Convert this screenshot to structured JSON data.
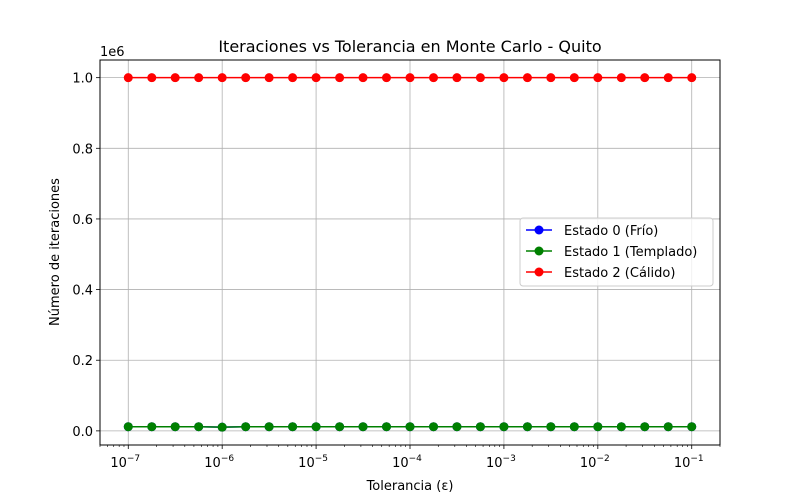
{
  "chart_data": {
    "type": "line",
    "title": "Iteraciones vs Tolerancia en Monte Carlo - Quito",
    "xlabel": "Tolerancia (ε)",
    "ylabel": "Número de iteraciones",
    "xscale": "log",
    "xlim": [
      5e-08,
      0.2
    ],
    "ylim": [
      -0.04,
      1.05
    ],
    "y_multiplier_label": "1e6",
    "grid": true,
    "legend_position": "center-right",
    "x_ticks": [
      {
        "value": 1e-07,
        "base": "10",
        "exp": "−7"
      },
      {
        "value": 1e-06,
        "base": "10",
        "exp": "−6"
      },
      {
        "value": 1e-05,
        "base": "10",
        "exp": "−5"
      },
      {
        "value": 0.0001,
        "base": "10",
        "exp": "−4"
      },
      {
        "value": 0.001,
        "base": "10",
        "exp": "−3"
      },
      {
        "value": 0.01,
        "base": "10",
        "exp": "−2"
      },
      {
        "value": 0.1,
        "base": "10",
        "exp": "−1"
      }
    ],
    "y_ticks": [
      {
        "value": 0.0,
        "label": "0.0"
      },
      {
        "value": 0.2,
        "label": "0.2"
      },
      {
        "value": 0.4,
        "label": "0.4"
      },
      {
        "value": 0.6,
        "label": "0.6"
      },
      {
        "value": 0.8,
        "label": "0.8"
      },
      {
        "value": 1.0,
        "label": "1.0"
      }
    ],
    "x": [
      1e-07,
      1.78e-07,
      3.16e-07,
      5.62e-07,
      1e-06,
      1.78e-06,
      3.16e-06,
      5.62e-06,
      1e-05,
      1.78e-05,
      3.16e-05,
      5.62e-05,
      0.0001,
      0.000178,
      0.000316,
      0.000562,
      0.001,
      0.00178,
      0.00316,
      0.00562,
      0.01,
      0.0178,
      0.0316,
      0.0562,
      0.1
    ],
    "series": [
      {
        "name": "Estado 0 (Frío)",
        "color": "#0000ff",
        "values": [
          0.0117,
          0.0117,
          0.0117,
          0.0117,
          0.0105,
          0.0117,
          0.0117,
          0.0117,
          0.0117,
          0.0117,
          0.0117,
          0.0117,
          0.0117,
          0.0117,
          0.0117,
          0.0117,
          0.0117,
          0.0117,
          0.0117,
          0.0117,
          0.0117,
          0.0117,
          0.0117,
          0.0117,
          0.0117
        ]
      },
      {
        "name": "Estado 1 (Templado)",
        "color": "#008000",
        "values": [
          0.0117,
          0.0117,
          0.0117,
          0.0117,
          0.0105,
          0.0117,
          0.0117,
          0.0117,
          0.0117,
          0.0117,
          0.0117,
          0.0117,
          0.0117,
          0.0117,
          0.0117,
          0.0117,
          0.0117,
          0.0117,
          0.0117,
          0.0117,
          0.0117,
          0.0117,
          0.0117,
          0.0117,
          0.0117
        ]
      },
      {
        "name": "Estado 2 (Cálido)",
        "color": "#ff0000",
        "values": [
          1.0,
          1.0,
          1.0,
          1.0,
          1.0,
          1.0,
          1.0,
          1.0,
          1.0,
          1.0,
          1.0,
          1.0,
          1.0,
          1.0,
          1.0,
          1.0,
          1.0,
          1.0,
          1.0,
          1.0,
          1.0,
          1.0,
          1.0,
          1.0,
          1.0
        ]
      }
    ]
  }
}
